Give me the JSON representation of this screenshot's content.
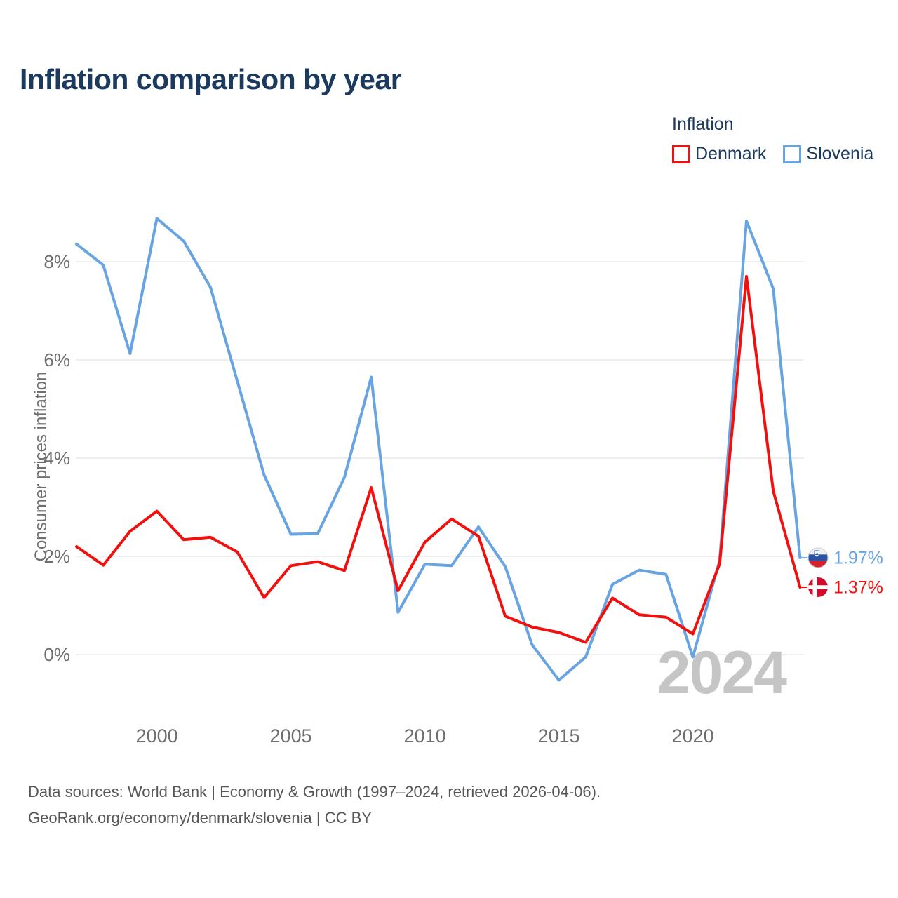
{
  "title": "Inflation comparison by year",
  "legend": {
    "title": "Inflation",
    "items": [
      {
        "label": "Denmark",
        "color": "#f2100e"
      },
      {
        "label": "Slovenia",
        "color": "#68a4e2"
      }
    ]
  },
  "chart_data": {
    "type": "line",
    "title": "Inflation comparison by year",
    "xlabel": "",
    "ylabel": "Consumer prices inflation",
    "x": [
      1997,
      1998,
      1999,
      2000,
      2001,
      2002,
      2003,
      2004,
      2005,
      2006,
      2007,
      2008,
      2009,
      2010,
      2011,
      2012,
      2013,
      2014,
      2015,
      2016,
      2017,
      2018,
      2019,
      2020,
      2021,
      2022,
      2023,
      2024
    ],
    "series": [
      {
        "name": "Denmark",
        "color": "#f2100e",
        "values": [
          2.2,
          1.82,
          2.51,
          2.92,
          2.34,
          2.39,
          2.09,
          1.16,
          1.81,
          1.89,
          1.71,
          3.4,
          1.3,
          2.29,
          2.76,
          2.41,
          0.78,
          0.56,
          0.45,
          0.25,
          1.15,
          0.81,
          0.76,
          0.42,
          1.85,
          7.7,
          3.33,
          1.37
        ],
        "end_label": "1.37%",
        "flag": "denmark"
      },
      {
        "name": "Slovenia",
        "color": "#68a4e2",
        "values": [
          8.36,
          7.93,
          6.13,
          8.88,
          8.42,
          7.48,
          5.57,
          3.66,
          2.45,
          2.46,
          3.61,
          5.65,
          0.86,
          1.84,
          1.81,
          2.6,
          1.79,
          0.2,
          -0.52,
          -0.05,
          1.43,
          1.72,
          1.63,
          -0.05,
          1.92,
          8.83,
          7.45,
          1.97
        ],
        "end_label": "1.97%",
        "flag": "slovenia"
      }
    ],
    "y_ticks": [
      0,
      2,
      4,
      6,
      8
    ],
    "y_tick_suffix": "%",
    "x_ticks": [
      2000,
      2005,
      2010,
      2015,
      2020
    ],
    "ylim": [
      -1.0,
      9.3
    ],
    "grid": true,
    "legend_position": "top-right",
    "watermark": "2024",
    "flag_colors": {
      "slovenia_white": "#f0f0f0",
      "slovenia_blue": "#2a55a5",
      "slovenia_red": "#d8202c",
      "denmark_red": "#d20b2e",
      "denmark_cross": "#ffffff"
    }
  },
  "footer": {
    "line1": "Data sources: World Bank | Economy & Growth (1997–2024, retrieved 2026-04-06).",
    "line2": "GeoRank.org/economy/denmark/slovenia | CC BY"
  }
}
